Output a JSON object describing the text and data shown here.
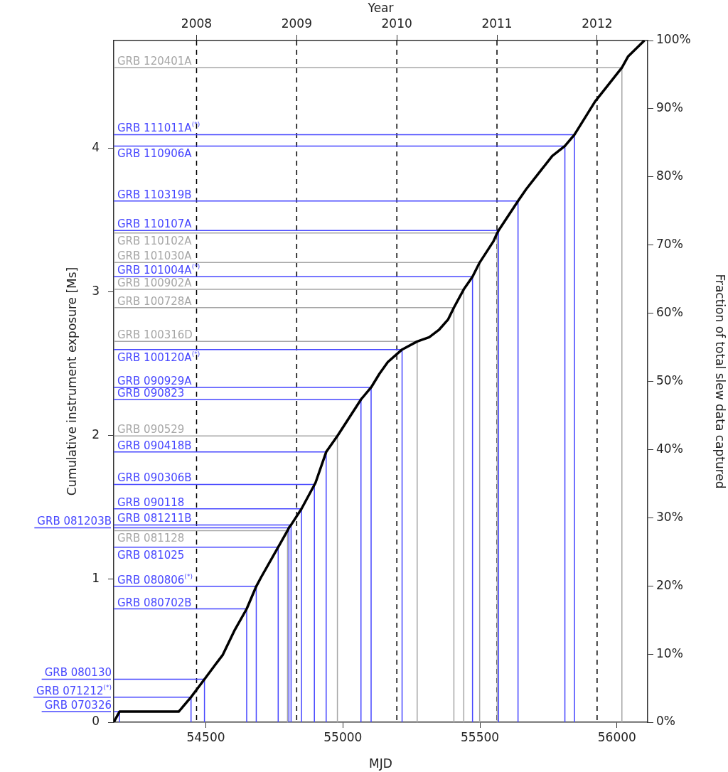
{
  "chart_data": {
    "type": "line",
    "xlabel": "MJD",
    "x2label": "Year",
    "ylabel": "Cumulative instrument exposure [Ms]",
    "y2label": "Fraction of total slew data captured",
    "xlim": [
      54164,
      56112
    ],
    "xticks": [
      54500,
      55000,
      55500,
      56000
    ],
    "x2lim": [
      2007.173,
      2012.505
    ],
    "x2ticks": [
      2008,
      2009,
      2010,
      2011,
      2012
    ],
    "ylim": [
      0,
      4.75
    ],
    "yticks": [
      0,
      1,
      2,
      3,
      4
    ],
    "y2lim": [
      0,
      100
    ],
    "y2ticks": [
      {
        "value": 0,
        "label": "0%"
      },
      {
        "value": 10,
        "label": "10%"
      },
      {
        "value": 20,
        "label": "20%"
      },
      {
        "value": 30,
        "label": "30%"
      },
      {
        "value": 40,
        "label": "40%"
      },
      {
        "value": 50,
        "label": "50%"
      },
      {
        "value": 60,
        "label": "60%"
      },
      {
        "value": 70,
        "label": "70%"
      },
      {
        "value": 80,
        "label": "80%"
      },
      {
        "value": 90,
        "label": "90%"
      },
      {
        "value": 100,
        "label": "100%"
      }
    ],
    "grid": false,
    "legend": false,
    "marker": "none",
    "line_style": "solid",
    "ref_lines": [
      {
        "axis": "x2",
        "value": 2008,
        "color": "#000000",
        "line_style": "dashed"
      },
      {
        "axis": "x2",
        "value": 2009,
        "color": "#000000",
        "line_style": "dashed"
      },
      {
        "axis": "x2",
        "value": 2010,
        "color": "#000000",
        "line_style": "dashed"
      },
      {
        "axis": "x2",
        "value": 2011,
        "color": "#000000",
        "line_style": "dashed"
      },
      {
        "axis": "x2",
        "value": 2012,
        "color": "#000000",
        "line_style": "dashed"
      }
    ],
    "series": [
      {
        "color": "#000000",
        "x": [
          54164,
          54185,
          54401,
          54446,
          54495,
          54536,
          54562,
          54606,
          54649,
          54684,
          54701,
          54764,
          54798,
          54803,
          54811,
          54849,
          54900,
          54939,
          54980,
          55066,
          55103,
          55133,
          55164,
          55216,
          55271,
          55315,
          55350,
          55384,
          55405,
          55441,
          55473,
          55499,
          55549,
          55563,
          55568,
          55639,
          55669,
          55764,
          55810,
          55845,
          55920,
          56018,
          56041,
          56100
        ],
        "values": [
          0,
          0.074,
          0.074,
          0.175,
          0.3,
          0.405,
          0.47,
          0.645,
          0.79,
          0.947,
          1.008,
          1.22,
          1.335,
          1.355,
          1.375,
          1.487,
          1.668,
          1.883,
          1.995,
          2.249,
          2.333,
          2.427,
          2.51,
          2.597,
          2.653,
          2.683,
          2.733,
          2.807,
          2.889,
          3.016,
          3.104,
          3.203,
          3.35,
          3.409,
          3.426,
          3.632,
          3.715,
          3.946,
          4.015,
          4.094,
          4.325,
          4.561,
          4.64,
          4.75
        ]
      },
      {
        "name": "GRB 070326",
        "color": "#4646ff",
        "x": [
          54164,
          54185,
          54185
        ],
        "values": [
          0.074,
          0.074,
          0
        ]
      },
      {
        "name": "GRB 071212$^{(*)}$",
        "color": "#4646ff",
        "x": [
          54164,
          54446,
          54446
        ],
        "values": [
          0.175,
          0.175,
          0
        ]
      },
      {
        "name": "GRB 080130",
        "color": "#4646ff",
        "x": [
          54164,
          54495,
          54495
        ],
        "values": [
          0.3,
          0.3,
          0
        ]
      },
      {
        "name": "GRB 080702B",
        "color": "#4646ff",
        "x": [
          54164,
          54649,
          54649
        ],
        "values": [
          0.79,
          0.79,
          0
        ]
      },
      {
        "name": "GRB 080806$^{(*)}$",
        "color": "#4646ff",
        "x": [
          54164,
          54684,
          54684
        ],
        "values": [
          0.947,
          0.947,
          0
        ]
      },
      {
        "name": "GRB 081025",
        "color": "#4646ff",
        "x": [
          54164,
          54764,
          54764
        ],
        "values": [
          1.22,
          1.22,
          0
        ]
      },
      {
        "name": "GRB 081128",
        "color": "#a6a6a6",
        "x": [
          54164,
          54798,
          54798
        ],
        "values": [
          1.335,
          1.335,
          0
        ]
      },
      {
        "name": "GRB 081203B",
        "color": "#4646ff",
        "x": [
          54164,
          54803,
          54803
        ],
        "values": [
          1.355,
          1.355,
          0
        ]
      },
      {
        "name": "GRB 081211B",
        "color": "#4646ff",
        "x": [
          54164,
          54811,
          54811
        ],
        "values": [
          1.375,
          1.375,
          0
        ]
      },
      {
        "name": "GRB 090118",
        "color": "#4646ff",
        "x": [
          54164,
          54849,
          54849
        ],
        "values": [
          1.487,
          1.487,
          0
        ]
      },
      {
        "name": "GRB 090306B",
        "color": "#4646ff",
        "x": [
          54164,
          54896,
          54896
        ],
        "values": [
          1.657,
          1.657,
          0
        ]
      },
      {
        "name": "GRB 090418B",
        "color": "#4646ff",
        "x": [
          54164,
          54939,
          54939
        ],
        "values": [
          1.883,
          1.883,
          0
        ]
      },
      {
        "name": "GRB 090529",
        "color": "#a6a6a6",
        "x": [
          54164,
          54980,
          54980
        ],
        "values": [
          1.995,
          1.995,
          0
        ]
      },
      {
        "name": "GRB 090823",
        "color": "#4646ff",
        "x": [
          54164,
          55066,
          55066
        ],
        "values": [
          2.249,
          2.249,
          0
        ]
      },
      {
        "name": "GRB 090929A",
        "color": "#4646ff",
        "x": [
          54164,
          55103,
          55103
        ],
        "values": [
          2.333,
          2.333,
          0
        ]
      },
      {
        "name": "GRB 100120A$^{(*)}$",
        "color": "#4646ff",
        "x": [
          54164,
          55216,
          55216
        ],
        "values": [
          2.597,
          2.597,
          0
        ]
      },
      {
        "name": "GRB 100316D",
        "color": "#a6a6a6",
        "x": [
          54164,
          55271,
          55271
        ],
        "values": [
          2.653,
          2.653,
          0
        ]
      },
      {
        "name": "GRB 100728A",
        "color": "#a6a6a6",
        "x": [
          54164,
          55405,
          55405
        ],
        "values": [
          2.889,
          2.889,
          0
        ]
      },
      {
        "name": "GRB 100902A",
        "color": "#a6a6a6",
        "x": [
          54164,
          55441,
          55441
        ],
        "values": [
          3.016,
          3.016,
          0
        ]
      },
      {
        "name": "GRB 101004A$^{(*)}$",
        "color": "#4646ff",
        "x": [
          54164,
          55473,
          55473
        ],
        "values": [
          3.104,
          3.104,
          0
        ]
      },
      {
        "name": "GRB 101030A",
        "color": "#a6a6a6",
        "x": [
          54164,
          55499,
          55499
        ],
        "values": [
          3.203,
          3.203,
          0
        ]
      },
      {
        "name": "GRB 110102A",
        "color": "#a6a6a6",
        "x": [
          54164,
          55563,
          55563
        ],
        "values": [
          3.409,
          3.409,
          0
        ]
      },
      {
        "name": "GRB 110107A",
        "color": "#4646ff",
        "x": [
          54164,
          55568,
          55568
        ],
        "values": [
          3.426,
          3.426,
          0
        ]
      },
      {
        "name": "GRB 110319B",
        "color": "#4646ff",
        "x": [
          54164,
          55639,
          55639
        ],
        "values": [
          3.632,
          3.632,
          0
        ]
      },
      {
        "name": "GRB 110906A",
        "color": "#4646ff",
        "x": [
          54164,
          55810,
          55810
        ],
        "values": [
          4.015,
          4.015,
          0
        ]
      },
      {
        "name": "GRB 111011A$^{(*)}$",
        "color": "#4646ff",
        "x": [
          54164,
          55845,
          55845
        ],
        "values": [
          4.094,
          4.094,
          0
        ]
      },
      {
        "name": "GRB 120401A",
        "color": "#a6a6a6",
        "x": [
          54164,
          56018,
          56018
        ],
        "values": [
          4.561,
          4.561,
          0
        ]
      }
    ]
  }
}
